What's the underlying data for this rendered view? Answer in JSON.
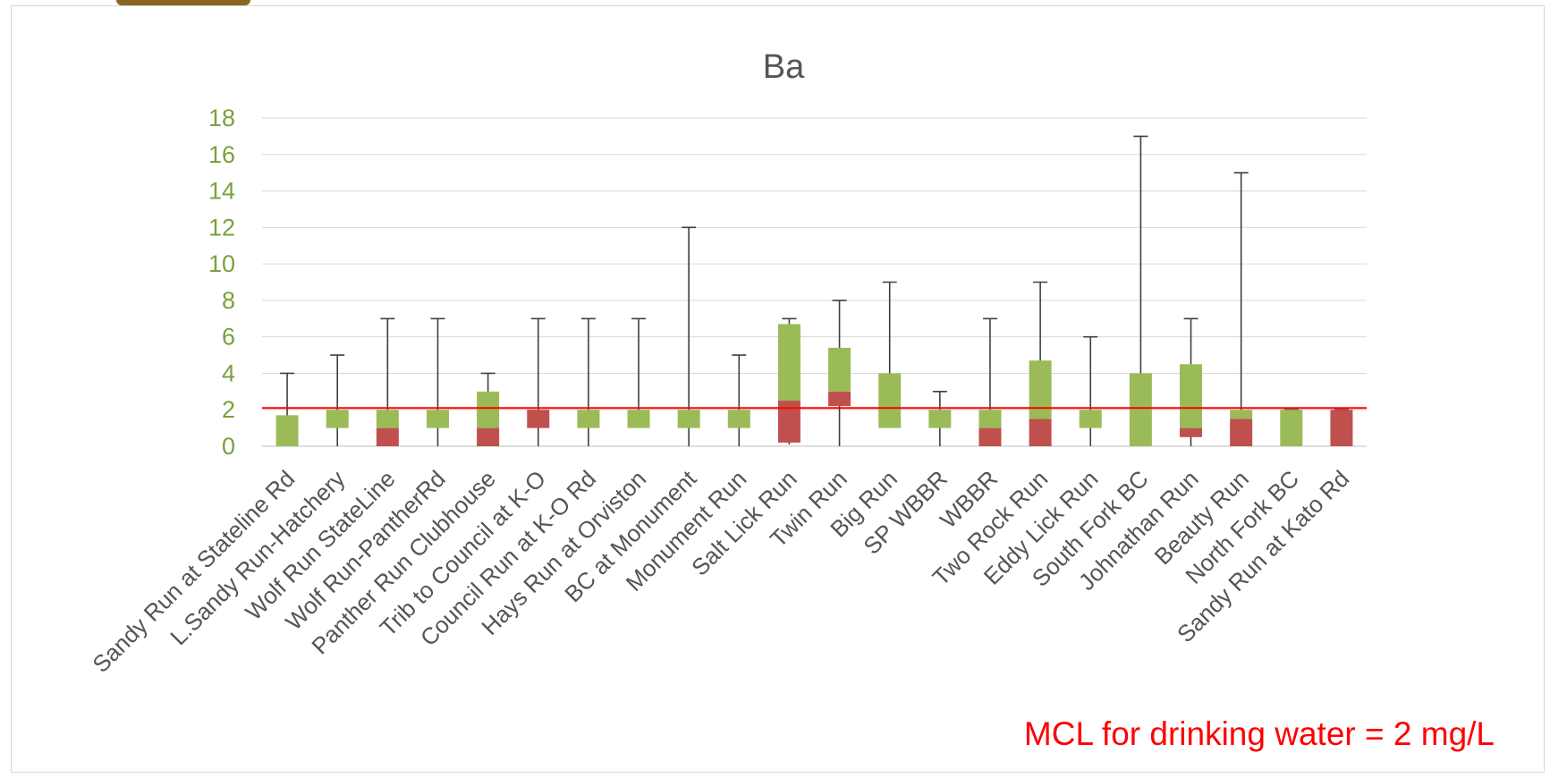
{
  "chart_data": {
    "type": "box",
    "title": "Ba",
    "xlabel": "",
    "ylabel": "",
    "ylim": [
      0,
      18
    ],
    "yticks": [
      0,
      2,
      4,
      6,
      8,
      10,
      12,
      14,
      16,
      18
    ],
    "grid": true,
    "colors": {
      "upper_box": "#9bbb59",
      "lower_box": "#c0504d",
      "whisker": "#404040",
      "mcl_line": "#ff0000",
      "tick_text": "#7aa13a"
    },
    "reference_line": {
      "value": 2,
      "label": "MCL for drinking water = 2 mg/L"
    },
    "categories": [
      "Sandy Run at Stateline Rd",
      "L.Sandy Run-Hatchery",
      "Wolf Run StateLine",
      "Wolf Run-PantherRd",
      "Panther Run Clubhouse",
      "Trib to Council at K-O",
      "Council Run at K-O Rd",
      "Hays Run at Orviston",
      "BC at Monument",
      "Monument Run",
      "Salt Lick Run",
      "Twin Run",
      "Big Run",
      "SP WBBR",
      "WBBR",
      "Two Rock Run",
      "Eddy Lick Run",
      "South Fork BC",
      "Johnathan Run",
      "Beauty Run",
      "North Fork BC",
      "Sandy Run at Kato Rd"
    ],
    "series": [
      {
        "name": "",
        "values": [
          {
            "min": 0,
            "q1": 0,
            "median": 0,
            "q3": 1.7,
            "max": 4
          },
          {
            "min": 0,
            "q1": 1,
            "median": 1,
            "q3": 2,
            "max": 5
          },
          {
            "min": 0,
            "q1": 0,
            "median": 1,
            "q3": 2,
            "max": 7
          },
          {
            "min": 0,
            "q1": 1,
            "median": 1,
            "q3": 2,
            "max": 7
          },
          {
            "min": 0,
            "q1": 0,
            "median": 1,
            "q3": 3,
            "max": 4
          },
          {
            "min": 0,
            "q1": 1,
            "median": 2,
            "q3": 2,
            "max": 7
          },
          {
            "min": 0,
            "q1": 1,
            "median": 1,
            "q3": 2,
            "max": 7
          },
          {
            "min": 1,
            "q1": 1,
            "median": 1,
            "q3": 2,
            "max": 7
          },
          {
            "min": 0,
            "q1": 1,
            "median": 1,
            "q3": 2,
            "max": 12
          },
          {
            "min": 0,
            "q1": 1,
            "median": 1,
            "q3": 2,
            "max": 5
          },
          {
            "min": 0.1,
            "q1": 0.2,
            "median": 2.5,
            "q3": 6.7,
            "max": 7
          },
          {
            "min": 0,
            "q1": 2.2,
            "median": 3,
            "q3": 5.4,
            "max": 8
          },
          {
            "min": 1,
            "q1": 1,
            "median": 1,
            "q3": 4,
            "max": 9
          },
          {
            "min": 0,
            "q1": 1,
            "median": 1,
            "q3": 2,
            "max": 3
          },
          {
            "min": 0,
            "q1": 0,
            "median": 1,
            "q3": 2,
            "max": 7
          },
          {
            "min": 0,
            "q1": 0,
            "median": 1.5,
            "q3": 4.7,
            "max": 9
          },
          {
            "min": 0,
            "q1": 1,
            "median": 1,
            "q3": 2,
            "max": 6
          },
          {
            "min": 0,
            "q1": 0,
            "median": 0,
            "q3": 4,
            "max": 17
          },
          {
            "min": 0,
            "q1": 0.5,
            "median": 1,
            "q3": 4.5,
            "max": 7
          },
          {
            "min": 0,
            "q1": 0,
            "median": 1.5,
            "q3": 2,
            "max": 15
          },
          {
            "min": 0,
            "q1": 0,
            "median": 0,
            "q3": 2,
            "max": 2
          },
          {
            "min": 0,
            "q1": 0,
            "median": 2,
            "q3": 2,
            "max": 2
          }
        ]
      }
    ]
  }
}
